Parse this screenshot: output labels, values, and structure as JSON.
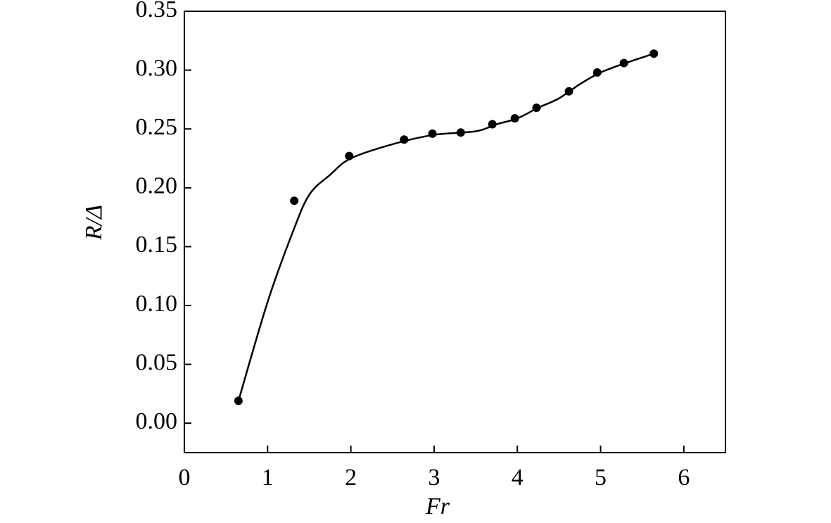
{
  "chart_data": {
    "type": "scatter",
    "xlabel": "Fr",
    "ylabel": "R/Δ",
    "xlim": [
      0,
      6.5
    ],
    "ylim": [
      -0.025,
      0.35
    ],
    "xticks": [
      0,
      1,
      2,
      3,
      4,
      5,
      6
    ],
    "yticks": [
      {
        "value": 0,
        "label": "0.00"
      },
      {
        "value": 0.05,
        "label": "0.05"
      },
      {
        "value": 0.1,
        "label": "0.10"
      },
      {
        "value": 0.15,
        "label": "0.15"
      },
      {
        "value": 0.2,
        "label": "0.20"
      },
      {
        "value": 0.25,
        "label": "0.25"
      },
      {
        "value": 0.3,
        "label": "0.30"
      },
      {
        "value": 0.35,
        "label": "0.35"
      }
    ],
    "grid": false,
    "series": [
      {
        "color": "#000000",
        "marker": "circle",
        "x": [
          0.65,
          1.32,
          1.98,
          2.64,
          2.98,
          3.32,
          3.7,
          3.97,
          4.23,
          4.62,
          4.96,
          5.28,
          5.64
        ],
        "values": [
          0.019,
          0.189,
          0.227,
          0.241,
          0.246,
          0.247,
          0.254,
          0.259,
          0.268,
          0.282,
          0.298,
          0.306,
          0.314
        ]
      },
      {
        "color": "#000000",
        "line": "smooth",
        "x": [
          0.65,
          1.0,
          1.3,
          1.5,
          1.75,
          2.0,
          2.5,
          3.0,
          3.5,
          3.75,
          4.0,
          4.25,
          4.5,
          4.75,
          5.0,
          5.3,
          5.64
        ],
        "values": [
          0.019,
          0.103,
          0.162,
          0.194,
          0.211,
          0.225,
          0.237,
          0.245,
          0.248,
          0.254,
          0.259,
          0.268,
          0.276,
          0.288,
          0.298,
          0.306,
          0.314
        ]
      }
    ]
  }
}
